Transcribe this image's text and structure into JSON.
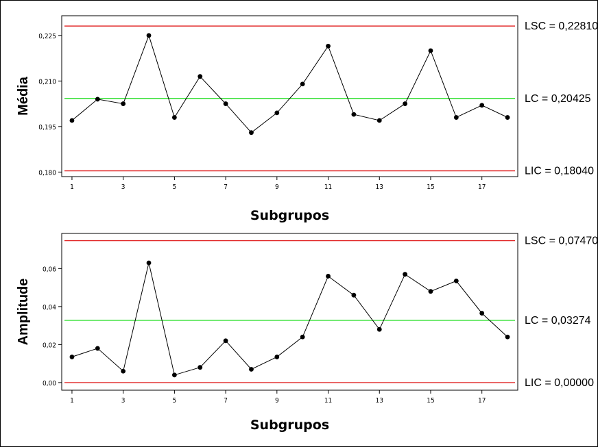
{
  "chart_data": [
    {
      "type": "line",
      "ylabel": "Média",
      "xlabel": "Subgrupos",
      "x": [
        1,
        2,
        3,
        4,
        5,
        6,
        7,
        8,
        9,
        10,
        11,
        12,
        13,
        14,
        15,
        16,
        17,
        18
      ],
      "values": [
        0.197,
        0.204,
        0.2025,
        0.225,
        0.198,
        0.2115,
        0.2025,
        0.193,
        0.1995,
        0.209,
        0.2215,
        0.199,
        0.197,
        0.2025,
        0.22,
        0.198,
        0.202,
        0.198
      ],
      "xticks": [
        1,
        3,
        5,
        7,
        9,
        11,
        13,
        15,
        17
      ],
      "yticks": [
        0.18,
        0.195,
        0.21,
        0.225
      ],
      "yticklabels": [
        "0,180",
        "0,195",
        "0,210",
        "0,225"
      ],
      "ylim": [
        0.1785,
        0.2315
      ],
      "limits": {
        "ucl": 0.2281,
        "cl": 0.20425,
        "lcl": 0.1804,
        "ucl_label": "LSC = 0,22810",
        "cl_label": "LC = 0,20425",
        "lcl_label": "LIC = 0,18040"
      },
      "colors": {
        "limit": "#e02020",
        "center": "#22dd22",
        "series": "#000000"
      }
    },
    {
      "type": "line",
      "ylabel": "Amplitude",
      "xlabel": "Subgrupos",
      "x": [
        1,
        2,
        3,
        4,
        5,
        6,
        7,
        8,
        9,
        10,
        11,
        12,
        13,
        14,
        15,
        16,
        17,
        18
      ],
      "values": [
        0.0135,
        0.018,
        0.006,
        0.063,
        0.004,
        0.008,
        0.022,
        0.007,
        0.0135,
        0.024,
        0.056,
        0.046,
        0.028,
        0.057,
        0.048,
        0.0535,
        0.0365,
        0.024
      ],
      "xticks": [
        1,
        3,
        5,
        7,
        9,
        11,
        13,
        15,
        17
      ],
      "yticks": [
        0.0,
        0.02,
        0.04,
        0.06
      ],
      "yticklabels": [
        "0,00",
        "0,02",
        "0,04",
        "0,06"
      ],
      "ylim": [
        -0.004,
        0.0785
      ],
      "limits": {
        "ucl": 0.0747,
        "cl": 0.03274,
        "lcl": 0.0,
        "ucl_label": "LSC = 0,07470",
        "cl_label": "LC = 0,03274",
        "lcl_label": "LIC = 0,00000"
      },
      "colors": {
        "limit": "#e02020",
        "center": "#22dd22",
        "series": "#000000"
      }
    }
  ]
}
